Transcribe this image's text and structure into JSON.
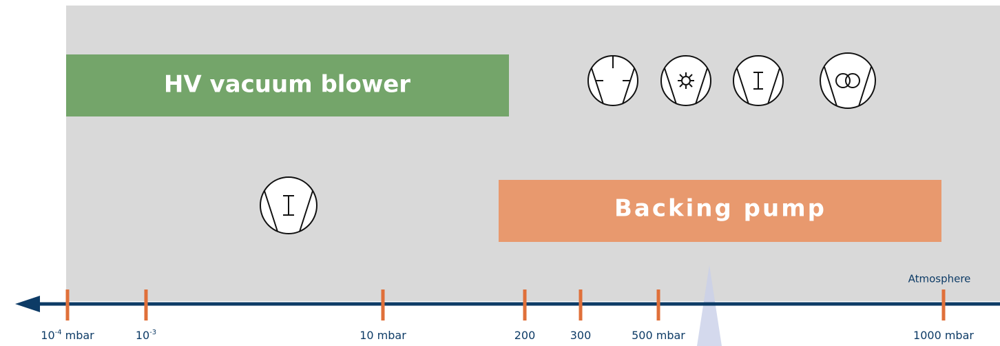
{
  "bands": [
    {
      "label": "HV vacuum blower"
    },
    {
      "label": "Backing pump"
    }
  ],
  "axis": {
    "end_label": "Atmosphere",
    "ticks": [
      {
        "base": "10",
        "sup": "-4",
        "unit": "mbar"
      },
      {
        "base": "10",
        "sup": "-3"
      },
      {
        "base": "10 mbar"
      },
      {
        "base": "200"
      },
      {
        "base": "300"
      },
      {
        "base": "500 mbar"
      },
      {
        "base": "1000 mbar"
      }
    ]
  }
}
